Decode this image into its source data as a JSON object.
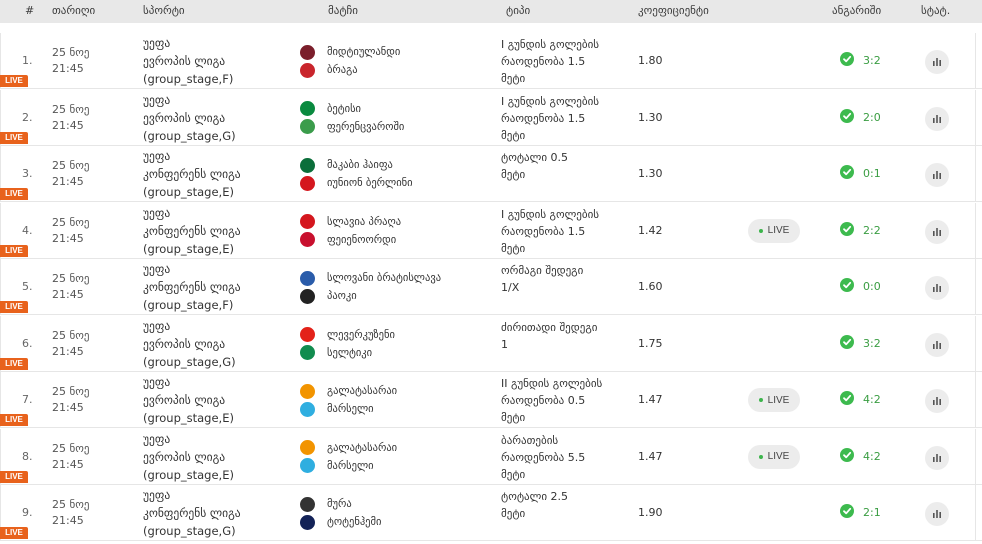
{
  "header": {
    "num": "#",
    "date": "თარიღი",
    "sport": "სპორტი",
    "match": "მატჩი",
    "type": "ტიპი",
    "coef": "კოეფიციენტი",
    "result": "ანგარიში",
    "stat": "სტატ."
  },
  "live_tag": "LIVE",
  "live_button": "LIVE",
  "rows": [
    {
      "idx": "1.",
      "date": "25 ნოე",
      "time": "21:45",
      "sport": [
        "უეფა",
        "ევროპის ლიგა",
        "(group_stage,F)"
      ],
      "home": "მიდტიულანდი",
      "away": "ბრაგა",
      "home_logo": "#7b1e2b",
      "away_logo": "#c9252c",
      "type": [
        "I გუნდის გოლების",
        "რაოდენობა 1.5",
        "მეტი"
      ],
      "coef": "1.80",
      "live": false,
      "score": "3:2"
    },
    {
      "idx": "2.",
      "date": "25 ნოე",
      "time": "21:45",
      "sport": [
        "უეფა",
        "ევროპის ლიგა",
        "(group_stage,G)"
      ],
      "home": "ბეტისი",
      "away": "ფერენცვაროში",
      "home_logo": "#0a8a3f",
      "away_logo": "#3b9c4b",
      "type": [
        "I გუნდის გოლების",
        "რაოდენობა 1.5",
        "მეტი"
      ],
      "coef": "1.30",
      "live": false,
      "score": "2:0"
    },
    {
      "idx": "3.",
      "date": "25 ნოე",
      "time": "21:45",
      "sport": [
        "უეფა",
        "კონფერენს ლიგა",
        "(group_stage,E)"
      ],
      "home": "მაკაბი ჰაიფა",
      "away": "იუნიონ ბერლინი",
      "home_logo": "#0b6e3a",
      "away_logo": "#d4171e",
      "type": [
        "ტოტალი 0.5",
        "მეტი"
      ],
      "coef": "1.30",
      "live": false,
      "score": "0:1"
    },
    {
      "idx": "4.",
      "date": "25 ნოე",
      "time": "21:45",
      "sport": [
        "უეფა",
        "კონფერენს ლიგა",
        "(group_stage,E)"
      ],
      "home": "სლავია პრაღა",
      "away": "ფეიენოორდი",
      "home_logo": "#d4171e",
      "away_logo": "#c8102e",
      "type": [
        "I გუნდის გოლების",
        "რაოდენობა 1.5",
        "მეტი"
      ],
      "coef": "1.42",
      "live": true,
      "score": "2:2"
    },
    {
      "idx": "5.",
      "date": "25 ნოე",
      "time": "21:45",
      "sport": [
        "უეფა",
        "კონფერენს ლიგა",
        "(group_stage,F)"
      ],
      "home": "სლოვანი ბრატისლავა",
      "away": "პაოკი",
      "home_logo": "#2a5caa",
      "away_logo": "#222222",
      "type": [
        "ორმაგი შედეგი",
        "1/X"
      ],
      "coef": "1.60",
      "live": false,
      "score": "0:0"
    },
    {
      "idx": "6.",
      "date": "25 ნოე",
      "time": "21:45",
      "sport": [
        "უეფა",
        "ევროპის ლიგა",
        "(group_stage,G)"
      ],
      "home": "ლევერკუზენი",
      "away": "სელტიკი",
      "home_logo": "#e32219",
      "away_logo": "#118c4f",
      "type": [
        "ძირითადი შედეგი",
        "1"
      ],
      "coef": "1.75",
      "live": false,
      "score": "3:2"
    },
    {
      "idx": "7.",
      "date": "25 ნოე",
      "time": "21:45",
      "sport": [
        "უეფა",
        "ევროპის ლიგა",
        "(group_stage,E)"
      ],
      "home": "გალატასარაი",
      "away": "მარსელი",
      "home_logo": "#f29400",
      "away_logo": "#2faee0",
      "type": [
        "II გუნდის გოლების",
        "რაოდენობა 0.5",
        "მეტი"
      ],
      "coef": "1.47",
      "live": true,
      "score": "4:2"
    },
    {
      "idx": "8.",
      "date": "25 ნოე",
      "time": "21:45",
      "sport": [
        "უეფა",
        "ევროპის ლიგა",
        "(group_stage,E)"
      ],
      "home": "გალატასარაი",
      "away": "მარსელი",
      "home_logo": "#f29400",
      "away_logo": "#2faee0",
      "type": [
        "ბარათების",
        "რაოდენობა 5.5",
        "მეტი"
      ],
      "coef": "1.47",
      "live": true,
      "score": "4:2"
    },
    {
      "idx": "9.",
      "date": "25 ნოე",
      "time": "21:45",
      "sport": [
        "უეფა",
        "კონფერენს ლიგა",
        "(group_stage,G)"
      ],
      "home": "მურა",
      "away": "ტოტენჰემი",
      "home_logo": "#333333",
      "away_logo": "#132257",
      "type": [
        "ტოტალი 2.5",
        "მეტი"
      ],
      "coef": "1.90",
      "live": false,
      "score": "2:1"
    }
  ]
}
